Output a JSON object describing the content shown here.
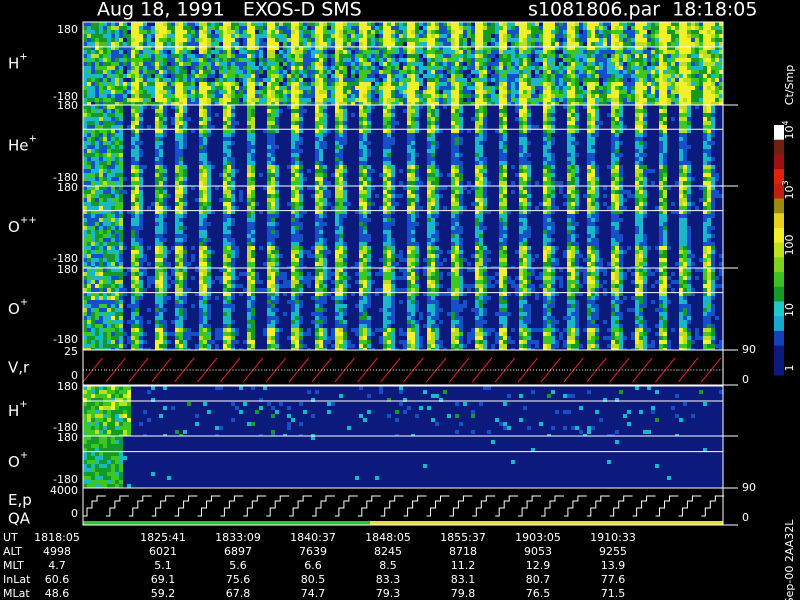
{
  "title": {
    "left": "Aug 18, 1991   EXOS-D SMS",
    "right": "s1081806.par  18:18:05"
  },
  "panels": [
    {
      "label": "H",
      "sup": "+",
      "ticks": [
        "180",
        "-180"
      ]
    },
    {
      "label": "He",
      "sup": "+",
      "ticks": [
        "180",
        "-180"
      ]
    },
    {
      "label": "O",
      "sup": "++",
      "ticks": [
        "180",
        "-180"
      ]
    },
    {
      "label": "O",
      "sup": "+",
      "ticks": [
        "180",
        "-180"
      ]
    },
    {
      "label": "V,r",
      "ticks": [
        "25",
        "0"
      ],
      "right_ticks": [
        "90",
        "0"
      ]
    },
    {
      "label": "H",
      "sup": "+",
      "ticks": [
        "180",
        "-180"
      ]
    },
    {
      "label": "O",
      "sup": "+",
      "ticks": [
        "180",
        "-180"
      ],
      "right_ticks": [
        "90"
      ]
    },
    {
      "label": "E,p",
      "label2": "QA",
      "ticks": [
        "4000",
        "0"
      ],
      "right_ticks": [
        "0"
      ]
    }
  ],
  "colorbar": {
    "label": "Ct/Smp",
    "ticks": [
      {
        "base": "10",
        "exp": "4"
      },
      {
        "base": "10",
        "exp": "3"
      },
      "100",
      "10",
      "1"
    ]
  },
  "footer": {
    "labels": [
      "UT",
      "ALT",
      "MLT",
      "InLat",
      "MLat"
    ],
    "rows": [
      [
        "1818:05",
        "1825:41",
        "1833:09",
        "1840:37",
        "1848:05",
        "1855:37",
        "1903:05",
        "1910:33"
      ],
      [
        "4998",
        "6021",
        "6897",
        "7639",
        "8245",
        "8718",
        "9053",
        "9255"
      ],
      [
        "4.7",
        "5.1",
        "5.6",
        "6.6",
        "8.5",
        "11.2",
        "12.9",
        "13.9"
      ],
      [
        "60.6",
        "69.1",
        "75.6",
        "80.5",
        "83.3",
        "83.1",
        "80.7",
        "77.6"
      ],
      [
        "48.6",
        "59.2",
        "67.8",
        "74.7",
        "79.3",
        "79.8",
        "76.5",
        "71.5"
      ]
    ]
  },
  "stamp": "Sep-00 2AA32L"
}
